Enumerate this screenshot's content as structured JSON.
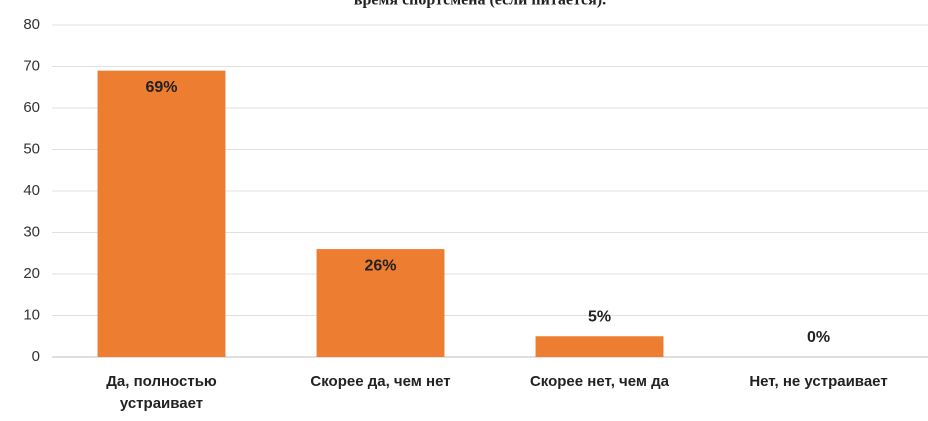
{
  "chart_data": {
    "type": "bar",
    "title": "время спортсмена (если питается).",
    "categories": [
      "Да, полностью устраивает",
      "Скорее да, чем нет",
      "Скорее нет, чем да",
      "Нет, не устраивает"
    ],
    "values": [
      69,
      26,
      5,
      0
    ],
    "value_labels": [
      "69%",
      "26%",
      "5%",
      "0%"
    ],
    "color": "#ed7d31",
    "ylim": [
      0,
      80
    ],
    "yticks": [
      0,
      10,
      20,
      30,
      40,
      50,
      60,
      70,
      80
    ],
    "grid": true
  }
}
